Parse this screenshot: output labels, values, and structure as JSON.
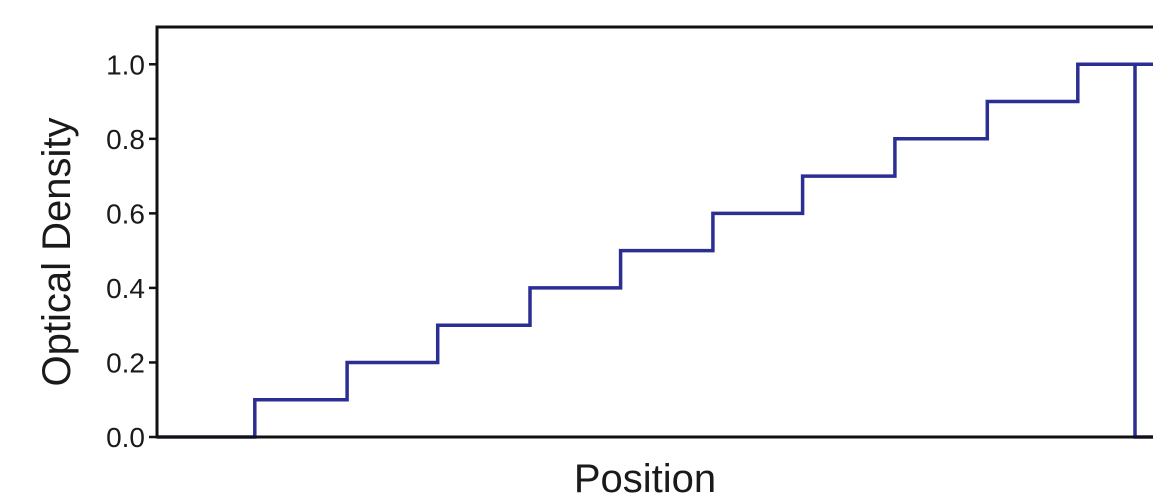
{
  "chart_data": {
    "type": "line",
    "step": true,
    "title": "",
    "xlabel": "Position",
    "ylabel": "Optical Density",
    "ylim": [
      0.0,
      1.1
    ],
    "yticks": [
      0.0,
      0.2,
      0.4,
      0.6,
      0.8,
      1.0
    ],
    "ytick_labels": [
      "0.0",
      "0.2",
      "0.4",
      "0.6",
      "0.8",
      "1.0"
    ],
    "xlim": [
      0,
      11
    ],
    "x_ticks_shown": false,
    "grid": false,
    "series": [
      {
        "color": "#2b2f94",
        "x": [
          0,
          1.08,
          1.08,
          2.1,
          2.1,
          3.1,
          3.1,
          4.12,
          4.12,
          5.12,
          5.12,
          6.14,
          6.14,
          7.13,
          7.13,
          8.15,
          8.15,
          9.17,
          9.17,
          10.17,
          10.17,
          11
        ],
        "y": [
          0.0,
          0.0,
          0.1,
          0.1,
          0.2,
          0.2,
          0.3,
          0.3,
          0.4,
          0.4,
          0.5,
          0.5,
          0.6,
          0.6,
          0.7,
          0.7,
          0.8,
          0.8,
          0.9,
          0.9,
          1.0,
          1.0
        ]
      }
    ],
    "end_drop_x": 11,
    "end_drop_y": 0.0
  }
}
